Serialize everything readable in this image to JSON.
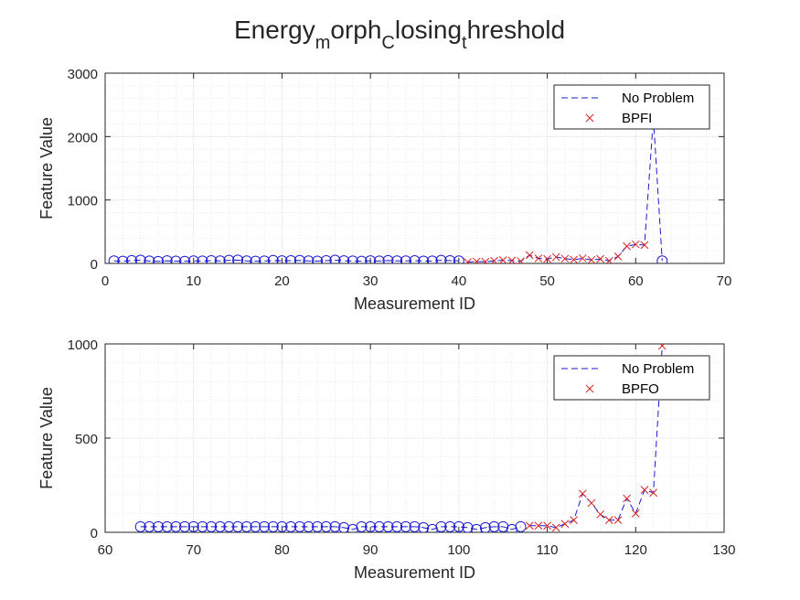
{
  "figure": {
    "title_main": "Energy",
    "title_parts": [
      {
        "t": "Energy",
        "sub": false
      },
      {
        "t": "m",
        "sub": true
      },
      {
        "t": "orph",
        "sub": false
      },
      {
        "t": "C",
        "sub": true
      },
      {
        "t": "losing",
        "sub": false
      },
      {
        "t": "t",
        "sub": true
      },
      {
        "t": "hreshold",
        "sub": false
      }
    ]
  },
  "colors": {
    "no_problem": "#1a1ad6",
    "fault": "#d62020",
    "grid": "#d9d9d9",
    "axis": "#262626"
  },
  "chart_data": [
    {
      "type": "line",
      "xlabel": "Measurement ID",
      "ylabel": "Feature Value",
      "xlim": [
        0,
        70
      ],
      "ylim": [
        0,
        3000
      ],
      "xticks": [
        0,
        10,
        20,
        30,
        40,
        50,
        60,
        70
      ],
      "yticks": [
        0,
        1000,
        2000,
        3000
      ],
      "grid": true,
      "legend_position": "top-right",
      "legend": [
        "No Problem",
        "BPFI"
      ],
      "series": [
        {
          "name": "No Problem",
          "style": "dashed",
          "marker": "circle",
          "x": [
            1,
            2,
            3,
            4,
            5,
            6,
            7,
            8,
            9,
            10,
            11,
            12,
            13,
            14,
            15,
            16,
            17,
            18,
            19,
            20,
            21,
            22,
            23,
            24,
            25,
            26,
            27,
            28,
            29,
            30,
            31,
            32,
            33,
            34,
            35,
            36,
            37,
            38,
            39,
            40,
            63
          ],
          "y": [
            40,
            35,
            45,
            50,
            38,
            30,
            42,
            36,
            33,
            40,
            37,
            44,
            39,
            48,
            52,
            40,
            35,
            38,
            46,
            41,
            43,
            47,
            39,
            36,
            44,
            50,
            42,
            38,
            35,
            41,
            37,
            45,
            40,
            39,
            43,
            36,
            38,
            48,
            44,
            40,
            40
          ]
        },
        {
          "name": "BPFI",
          "style": "dashed",
          "marker": "x",
          "x": [
            41,
            42,
            43,
            44,
            45,
            46,
            47,
            48,
            49,
            50,
            51,
            52,
            53,
            54,
            55,
            56,
            57,
            58,
            59,
            60,
            61,
            62
          ],
          "y": [
            20,
            30,
            25,
            40,
            50,
            45,
            35,
            130,
            80,
            70,
            100,
            75,
            60,
            80,
            55,
            70,
            40,
            110,
            270,
            300,
            290,
            2300
          ]
        }
      ],
      "bridge": {
        "x": [
          62,
          63
        ],
        "y": [
          2300,
          40
        ]
      }
    },
    {
      "type": "line",
      "xlabel": "Measurement ID",
      "ylabel": "Feature Value",
      "xlim": [
        60,
        130
      ],
      "ylim": [
        0,
        1000
      ],
      "xticks": [
        60,
        70,
        80,
        90,
        100,
        110,
        120,
        130
      ],
      "yticks": [
        0,
        500,
        1000
      ],
      "grid": true,
      "legend_position": "top-right",
      "legend": [
        "No Problem",
        "BPFO"
      ],
      "series": [
        {
          "name": "No Problem",
          "style": "dashed",
          "marker": "circle",
          "x": [
            64,
            65,
            66,
            67,
            68,
            69,
            70,
            71,
            72,
            73,
            74,
            75,
            76,
            77,
            78,
            79,
            80,
            81,
            82,
            83,
            84,
            85,
            86,
            87,
            88,
            89,
            90,
            91,
            92,
            93,
            94,
            95,
            96,
            97,
            98,
            99,
            100,
            101,
            102,
            103,
            104,
            105,
            106,
            107
          ],
          "y": [
            30,
            30,
            30,
            30,
            30,
            30,
            30,
            30,
            30,
            30,
            30,
            30,
            30,
            30,
            30,
            30,
            30,
            30,
            30,
            30,
            30,
            30,
            30,
            25,
            15,
            30,
            30,
            30,
            30,
            30,
            30,
            30,
            25,
            15,
            30,
            30,
            30,
            25,
            15,
            25,
            30,
            30,
            15,
            30
          ]
        },
        {
          "name": "BPFO",
          "style": "dashed",
          "marker": "x",
          "x": [
            108,
            109,
            110,
            111,
            112,
            113,
            114,
            115,
            116,
            117,
            118,
            119,
            120,
            121,
            122,
            123
          ],
          "y": [
            35,
            35,
            35,
            25,
            45,
            65,
            205,
            155,
            95,
            65,
            65,
            180,
            100,
            225,
            210,
            990
          ]
        }
      ]
    }
  ]
}
